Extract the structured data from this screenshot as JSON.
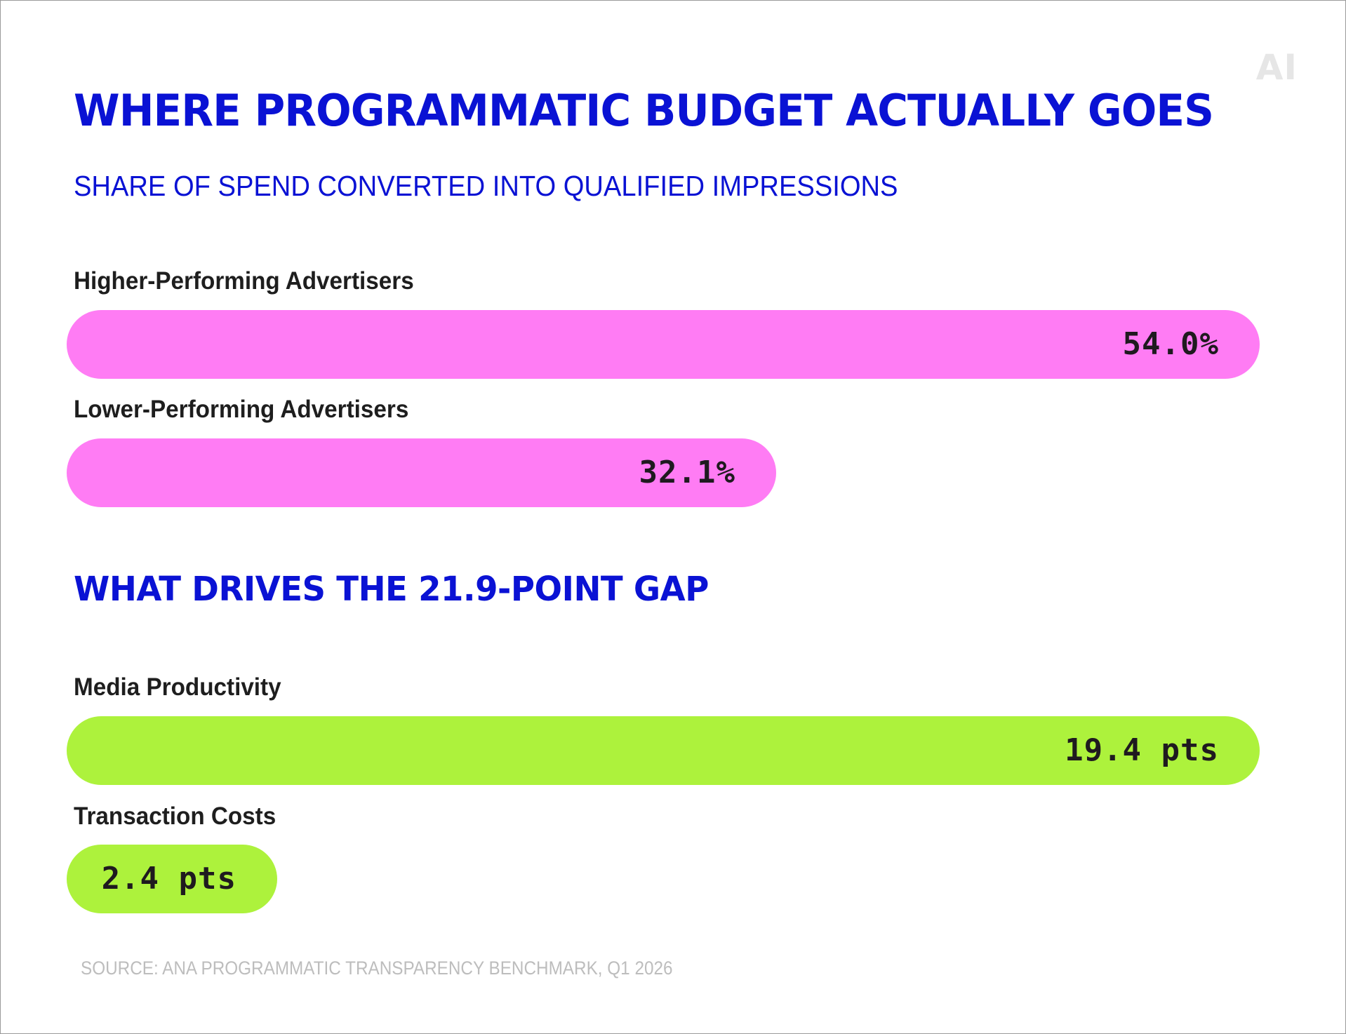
{
  "logo": "AI",
  "title": "WHERE PROGRAMMATIC BUDGET ACTUALLY GOES",
  "subtitle": "SHARE OF SPEND CONVERTED INTO QUALIFIED IMPRESSIONS",
  "section_title": "WHAT DRIVES THE 21.9-POINT GAP",
  "source": "SOURCE: ANA PROGRAMMATIC TRANSPARENCY BENCHMARK, Q1 2026",
  "colors": {
    "title": "#0a12d4",
    "share_bars": "#ff7cf4",
    "driver_bars": "#adf23c",
    "value_text": "#1f1a1f"
  },
  "chart_data": [
    {
      "type": "bar",
      "orientation": "horizontal",
      "title": "SHARE OF SPEND CONVERTED INTO QUALIFIED IMPRESSIONS",
      "categories": [
        "Higher-Performing Advertisers",
        "Lower-Performing Advertisers"
      ],
      "values": [
        54.0,
        32.1
      ],
      "value_labels": [
        "54.0%",
        "32.1%"
      ],
      "unit": "%",
      "grid": false
    },
    {
      "type": "bar",
      "orientation": "horizontal",
      "title": "WHAT DRIVES THE 21.9-POINT GAP",
      "categories": [
        "Media Productivity",
        "Transaction Costs"
      ],
      "values": [
        19.4,
        2.4
      ],
      "value_labels": [
        "19.4 pts",
        "2.4 pts"
      ],
      "unit": "pts",
      "grid": false
    }
  ]
}
